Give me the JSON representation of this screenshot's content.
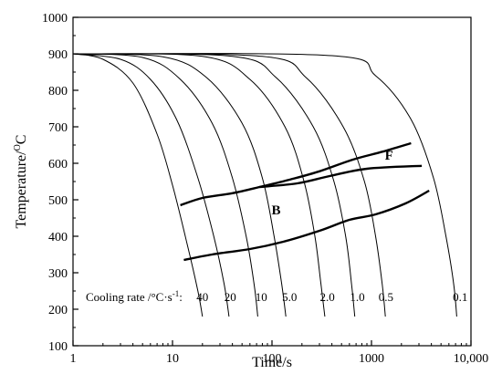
{
  "chart_data": {
    "type": "line",
    "title": "",
    "xlabel": "Time/s",
    "ylabel_prefix": "Temperature/",
    "ylabel_unit": "C",
    "ylabel_sup": "O",
    "x_scale": "log",
    "xlim": [
      1,
      10000
    ],
    "ylim": [
      100,
      1000
    ],
    "x_ticks": [
      {
        "value": 1,
        "label": "1"
      },
      {
        "value": 10,
        "label": "10"
      },
      {
        "value": 100,
        "label": "100"
      },
      {
        "value": 1000,
        "label": "1000"
      },
      {
        "value": 10000,
        "label": "10,000"
      }
    ],
    "y_ticks": [
      100,
      200,
      300,
      400,
      500,
      600,
      700,
      800,
      900,
      1000
    ],
    "cooling_curves": [
      {
        "rate": "40",
        "points": [
          [
            1,
            900
          ],
          [
            2,
            885
          ],
          [
            4,
            820
          ],
          [
            7,
            680
          ],
          [
            10,
            540
          ],
          [
            14,
            380
          ],
          [
            18,
            250
          ],
          [
            20,
            180
          ]
        ]
      },
      {
        "rate": "20",
        "points": [
          [
            1,
            900
          ],
          [
            3,
            885
          ],
          [
            6,
            830
          ],
          [
            11,
            720
          ],
          [
            18,
            560
          ],
          [
            26,
            400
          ],
          [
            33,
            270
          ],
          [
            37,
            180
          ]
        ]
      },
      {
        "rate": "10",
        "points": [
          [
            1,
            900
          ],
          [
            5,
            890
          ],
          [
            12,
            830
          ],
          [
            25,
            710
          ],
          [
            40,
            560
          ],
          [
            55,
            400
          ],
          [
            66,
            270
          ],
          [
            72,
            180
          ]
        ]
      },
      {
        "rate": "5.0",
        "points": [
          [
            1,
            900
          ],
          [
            8,
            892
          ],
          [
            22,
            835
          ],
          [
            50,
            710
          ],
          [
            80,
            560
          ],
          [
            105,
            400
          ],
          [
            125,
            270
          ],
          [
            138,
            180
          ]
        ]
      },
      {
        "rate": "2.0",
        "points": [
          [
            1,
            900
          ],
          [
            20,
            893
          ],
          [
            60,
            830
          ],
          [
            135,
            700
          ],
          [
            210,
            550
          ],
          [
            270,
            400
          ],
          [
            310,
            270
          ],
          [
            340,
            180
          ]
        ]
      },
      {
        "rate": "1.0",
        "points": [
          [
            1,
            900
          ],
          [
            40,
            893
          ],
          [
            110,
            835
          ],
          [
            260,
            700
          ],
          [
            420,
            550
          ],
          [
            550,
            400
          ],
          [
            630,
            270
          ],
          [
            680,
            180
          ]
        ]
      },
      {
        "rate": "0.5",
        "points": [
          [
            1,
            900
          ],
          [
            80,
            893
          ],
          [
            220,
            835
          ],
          [
            520,
            700
          ],
          [
            850,
            550
          ],
          [
            1100,
            400
          ],
          [
            1280,
            270
          ],
          [
            1380,
            180
          ]
        ]
      },
      {
        "rate": "0.1",
        "points": [
          [
            1,
            900
          ],
          [
            400,
            895
          ],
          [
            1100,
            840
          ],
          [
            2500,
            720
          ],
          [
            4200,
            560
          ],
          [
            5600,
            400
          ],
          [
            6700,
            270
          ],
          [
            7200,
            180
          ]
        ]
      }
    ],
    "transformation_lines": [
      {
        "name": "ferrite-start",
        "points": [
          [
            75,
            535
          ],
          [
            180,
            545
          ],
          [
            380,
            565
          ],
          [
            900,
            585
          ],
          [
            3200,
            593
          ]
        ]
      },
      {
        "name": "ferrite-bainite-boundary",
        "points": [
          [
            12,
            485
          ],
          [
            20,
            505
          ],
          [
            40,
            518
          ],
          [
            75,
            535
          ],
          [
            150,
            555
          ],
          [
            300,
            578
          ],
          [
            650,
            610
          ],
          [
            1300,
            632
          ],
          [
            2500,
            655
          ]
        ]
      },
      {
        "name": "bainite-finish",
        "points": [
          [
            13,
            335
          ],
          [
            25,
            350
          ],
          [
            60,
            365
          ],
          [
            130,
            385
          ],
          [
            300,
            415
          ],
          [
            600,
            445
          ],
          [
            1100,
            460
          ],
          [
            2200,
            490
          ],
          [
            3800,
            525
          ]
        ]
      }
    ],
    "annotations": [
      {
        "text": "F",
        "x": 1500,
        "y": 610
      },
      {
        "text": "B",
        "x": 110,
        "y": 460
      }
    ],
    "legend_text": "Cooling rate /°C·s",
    "legend_exponent": "-1",
    "legend_colon": ":",
    "rate_labels": [
      {
        "text": "40",
        "x": 20
      },
      {
        "text": "20",
        "x": 38
      },
      {
        "text": "10",
        "x": 78
      },
      {
        "text": "5.0",
        "x": 150
      },
      {
        "text": "2.0",
        "x": 360
      },
      {
        "text": "1.0",
        "x": 720
      },
      {
        "text": "0.5",
        "x": 1400
      },
      {
        "text": "0.1",
        "x": 7800
      }
    ],
    "grid": false,
    "line_color": "#000000"
  }
}
